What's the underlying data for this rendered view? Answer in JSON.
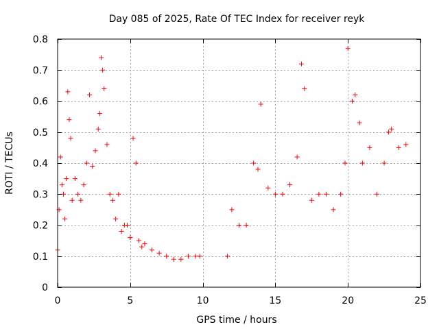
{
  "chart_data": {
    "type": "scatter",
    "title": "Day 085 of 2025, Rate Of TEC Index for receiver reyk",
    "xlabel": "GPS time / hours",
    "ylabel": "ROTI / TECUs",
    "xlim": [
      0,
      25
    ],
    "ylim": [
      0,
      0.8
    ],
    "x_ticks": [
      0,
      5,
      10,
      15,
      20,
      25
    ],
    "x_tick_labels": [
      "0",
      "5",
      "10",
      "15",
      "20",
      "25"
    ],
    "y_ticks": [
      0,
      0.1,
      0.2,
      0.3,
      0.4,
      0.5,
      0.6,
      0.7,
      0.8
    ],
    "y_tick_labels": [
      "0",
      "0.1",
      "0.2",
      "0.3",
      "0.4",
      "0.5",
      "0.6",
      "0.7",
      "0.8"
    ],
    "grid": true,
    "marker": "+",
    "marker_color": "#ff0000",
    "data_gap_hours": [
      9.8,
      11.7
    ],
    "series": [
      {
        "name": "ROTI",
        "x": [
          0.0,
          0.1,
          0.2,
          0.3,
          0.4,
          0.5,
          0.6,
          0.7,
          0.8,
          0.9,
          1.0,
          1.2,
          1.4,
          1.6,
          1.8,
          2.0,
          2.2,
          2.4,
          2.6,
          2.8,
          2.9,
          3.0,
          3.1,
          3.2,
          3.4,
          3.6,
          3.8,
          4.0,
          4.2,
          4.4,
          4.6,
          4.8,
          5.0,
          5.2,
          5.4,
          5.6,
          5.8,
          6.0,
          6.5,
          7.0,
          7.5,
          8.0,
          8.5,
          9.0,
          9.5,
          9.8,
          11.7,
          12.0,
          12.5,
          13.0,
          13.5,
          13.8,
          14.0,
          14.5,
          15.0,
          15.5,
          16.0,
          16.5,
          16.8,
          17.0,
          17.5,
          18.0,
          18.5,
          19.0,
          19.5,
          19.8,
          20.0,
          20.3,
          20.5,
          20.8,
          21.0,
          21.5,
          22.0,
          22.5,
          22.8,
          23.0,
          23.5,
          24.0
        ],
        "y": [
          0.12,
          0.25,
          0.42,
          0.33,
          0.3,
          0.22,
          0.35,
          0.63,
          0.54,
          0.48,
          0.28,
          0.35,
          0.3,
          0.28,
          0.33,
          0.4,
          0.62,
          0.39,
          0.44,
          0.51,
          0.56,
          0.74,
          0.7,
          0.64,
          0.46,
          0.3,
          0.28,
          0.22,
          0.3,
          0.18,
          0.2,
          0.2,
          0.16,
          0.48,
          0.4,
          0.15,
          0.13,
          0.14,
          0.12,
          0.11,
          0.1,
          0.09,
          0.09,
          0.1,
          0.1,
          0.1,
          0.1,
          0.25,
          0.2,
          0.2,
          0.4,
          0.38,
          0.59,
          0.32,
          0.3,
          0.3,
          0.33,
          0.42,
          0.72,
          0.64,
          0.28,
          0.3,
          0.3,
          0.25,
          0.3,
          0.4,
          0.77,
          0.6,
          0.62,
          0.53,
          0.4,
          0.45,
          0.3,
          0.4,
          0.5,
          0.51,
          0.45,
          0.46
        ]
      }
    ]
  }
}
